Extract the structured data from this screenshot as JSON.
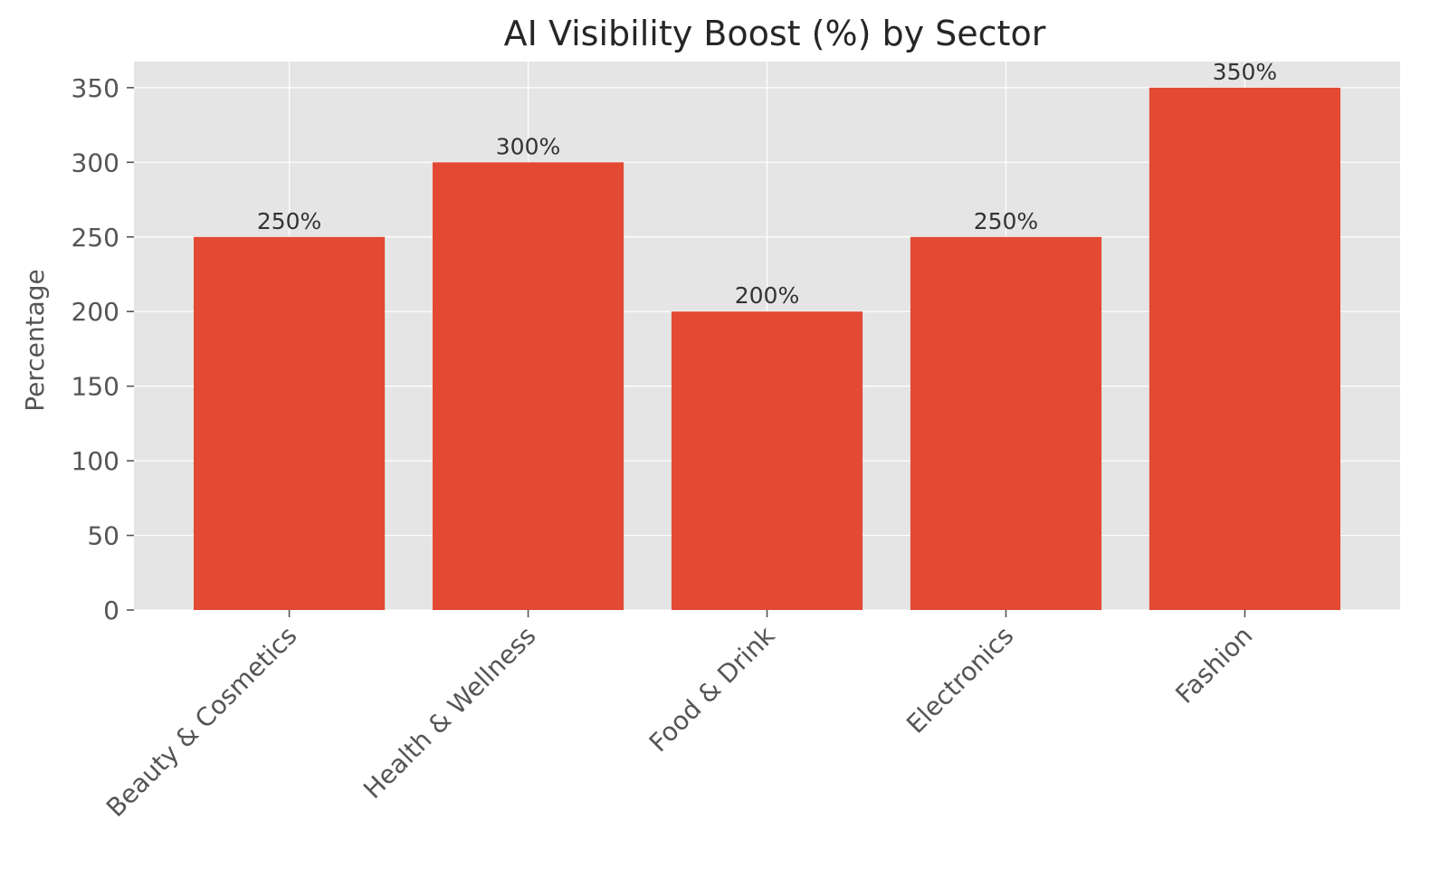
{
  "chart_data": {
    "type": "bar",
    "title": "AI Visibility Boost (%) by Sector",
    "xlabel": "",
    "ylabel": "Percentage",
    "categories": [
      "Beauty & Cosmetics",
      "Health & Wellness",
      "Food & Drink",
      "Electronics",
      "Fashion"
    ],
    "values": [
      250,
      300,
      200,
      250,
      350
    ],
    "data_labels": [
      "250%",
      "300%",
      "200%",
      "250%",
      "350%"
    ],
    "ylim": [
      0,
      367.5
    ],
    "yticks": [
      0,
      50,
      100,
      150,
      200,
      250,
      300,
      350
    ],
    "grid": true,
    "bar_color": "#E24A33",
    "plot_background": "#E5E5E5",
    "grid_color": "#FFFFFF"
  }
}
